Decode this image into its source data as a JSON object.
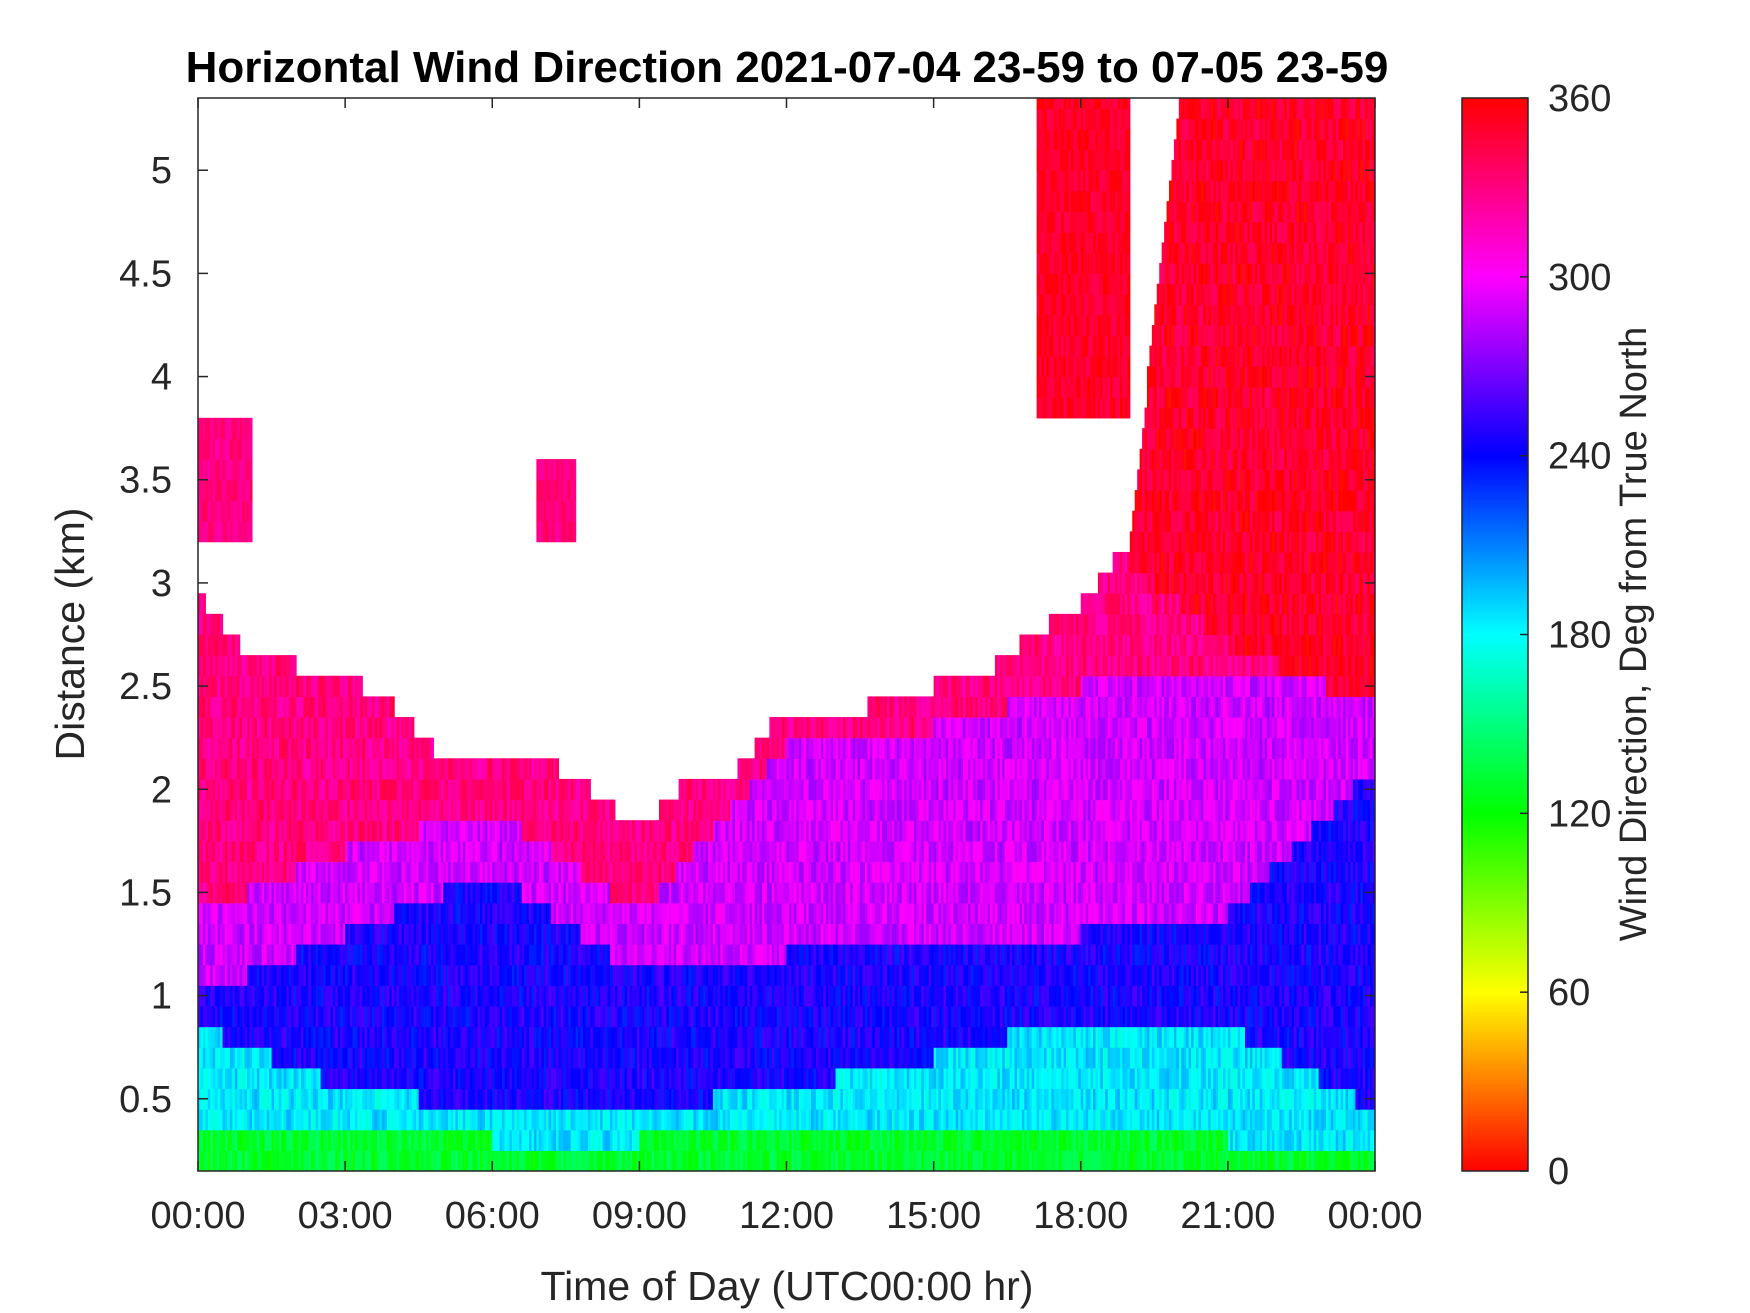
{
  "chart_data": {
    "type": "heatmap",
    "title": "Horizontal Wind Direction 2021-07-04 23-59 to 07-05 23-59",
    "xlabel": "Time of Day (UTC00:00 hr)",
    "ylabel": "Distance (km)",
    "xlim": [
      0,
      24
    ],
    "ylim": [
      0.15,
      5.35
    ],
    "x_ticks": [
      {
        "value": 0,
        "label": "00:00"
      },
      {
        "value": 3,
        "label": "03:00"
      },
      {
        "value": 6,
        "label": "06:00"
      },
      {
        "value": 9,
        "label": "09:00"
      },
      {
        "value": 12,
        "label": "12:00"
      },
      {
        "value": 15,
        "label": "15:00"
      },
      {
        "value": 18,
        "label": "18:00"
      },
      {
        "value": 21,
        "label": "21:00"
      },
      {
        "value": 24,
        "label": "00:00"
      }
    ],
    "y_ticks": [
      {
        "value": 0.5,
        "label": "0.5"
      },
      {
        "value": 1,
        "label": "1"
      },
      {
        "value": 1.5,
        "label": "1.5"
      },
      {
        "value": 2,
        "label": "2"
      },
      {
        "value": 2.5,
        "label": "2.5"
      },
      {
        "value": 3,
        "label": "3"
      },
      {
        "value": 3.5,
        "label": "3.5"
      },
      {
        "value": 4,
        "label": "4"
      },
      {
        "value": 4.5,
        "label": "4.5"
      },
      {
        "value": 5,
        "label": "5"
      }
    ],
    "colorbar": {
      "label": "Wind Direction, Deg from True North",
      "clim": [
        0,
        360
      ],
      "ticks": [
        {
          "value": 0,
          "label": "0"
        },
        {
          "value": 60,
          "label": "60"
        },
        {
          "value": 120,
          "label": "120"
        },
        {
          "value": 180,
          "label": "180"
        },
        {
          "value": 240,
          "label": "240"
        },
        {
          "value": 300,
          "label": "300"
        },
        {
          "value": 360,
          "label": "360"
        }
      ],
      "colormap": "hsv"
    },
    "grid": false,
    "data_top_km": {
      "hours": [
        0,
        1,
        2,
        3,
        4,
        5,
        6,
        7,
        8,
        9,
        10,
        11,
        12,
        13,
        14,
        15,
        16,
        17,
        18,
        19,
        20,
        21,
        22,
        23,
        24
      ],
      "top": [
        2.95,
        2.65,
        2.6,
        2.55,
        2.4,
        2.15,
        2.15,
        2.15,
        2.0,
        1.8,
        2.05,
        2.1,
        2.4,
        2.3,
        2.45,
        2.5,
        2.55,
        2.75,
        2.9,
        3.2,
        5.35,
        5.35,
        5.35,
        5.35,
        5.35
      ]
    },
    "layers": [
      {
        "hours": [
          0,
          3,
          6,
          9,
          12,
          15,
          18,
          21,
          24
        ],
        "bottom": 0.15,
        "top": [
          0.3,
          0.35,
          0.3,
          0.3,
          0.35,
          0.3,
          0.35,
          0.3,
          0.3
        ],
        "direction_deg": 130
      },
      {
        "hours": [
          0,
          3,
          6,
          9,
          12,
          15,
          18,
          21,
          24
        ],
        "bottom": "previous",
        "top": [
          0.85,
          0.55,
          0.45,
          0.45,
          0.55,
          0.7,
          0.9,
          0.85,
          0.45
        ],
        "direction_deg": 185
      },
      {
        "hours": [
          0,
          3,
          6,
          9,
          12,
          15,
          18,
          21,
          24
        ],
        "bottom": "previous",
        "top": [
          1.0,
          1.3,
          1.6,
          1.1,
          1.2,
          1.3,
          1.3,
          1.4,
          2.1
        ],
        "direction_deg": 245
      },
      {
        "hours": [
          0,
          3,
          6,
          9,
          12,
          15,
          18,
          21,
          24
        ],
        "bottom": "previous",
        "top": [
          1.4,
          1.7,
          1.9,
          1.4,
          2.2,
          2.3,
          2.5,
          2.6,
          2.5
        ],
        "direction_deg": 290
      },
      {
        "hours": [
          0,
          3,
          6,
          9,
          12,
          15,
          18,
          21,
          24
        ],
        "bottom": "previous",
        "top": "data_top",
        "direction_deg": 330
      },
      {
        "hours": [
          18,
          19,
          20,
          21,
          22,
          23,
          24
        ],
        "bottom": [
          3.3,
          3.1,
          2.9,
          2.7,
          2.6,
          2.5,
          2.5
        ],
        "top": "data_top",
        "direction_deg": 350
      }
    ],
    "patches": [
      {
        "x": [
          0,
          1.1
        ],
        "y": [
          3.2,
          3.75
        ],
        "direction_deg": 330
      },
      {
        "x": [
          6.9,
          7.7
        ],
        "y": [
          3.2,
          3.55
        ],
        "direction_deg": 330
      },
      {
        "x": [
          17.1,
          19.0
        ],
        "y": [
          3.8,
          5.35
        ],
        "direction_deg": 350
      }
    ]
  }
}
